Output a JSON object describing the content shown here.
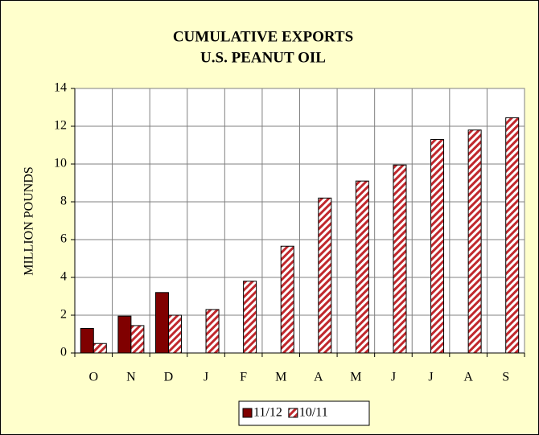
{
  "chart_data": {
    "type": "bar",
    "title": "CUMULATIVE EXPORTS",
    "subtitle": "U.S. PEANUT OIL",
    "y_label": "MILLION POUNDS",
    "categories": [
      "O",
      "N",
      "D",
      "J",
      "F",
      "M",
      "A",
      "M",
      "J",
      "J",
      "A",
      "S"
    ],
    "series": [
      {
        "name": "11/12",
        "color": "#800000",
        "pattern": "solid",
        "values": [
          1.3,
          1.95,
          3.2,
          null,
          null,
          null,
          null,
          null,
          null,
          null,
          null,
          null
        ]
      },
      {
        "name": "10/11",
        "color": "#c0282d",
        "pattern": "hatch",
        "values": [
          0.5,
          1.45,
          2.0,
          2.3,
          3.8,
          5.65,
          8.2,
          9.1,
          9.95,
          11.3,
          11.8,
          12.45
        ]
      }
    ],
    "ylim": [
      0,
      14
    ],
    "yticks": [
      0,
      2,
      4,
      6,
      8,
      10,
      12,
      14
    ],
    "grid": true,
    "background": "#ffffcc",
    "legend": "bottom"
  }
}
